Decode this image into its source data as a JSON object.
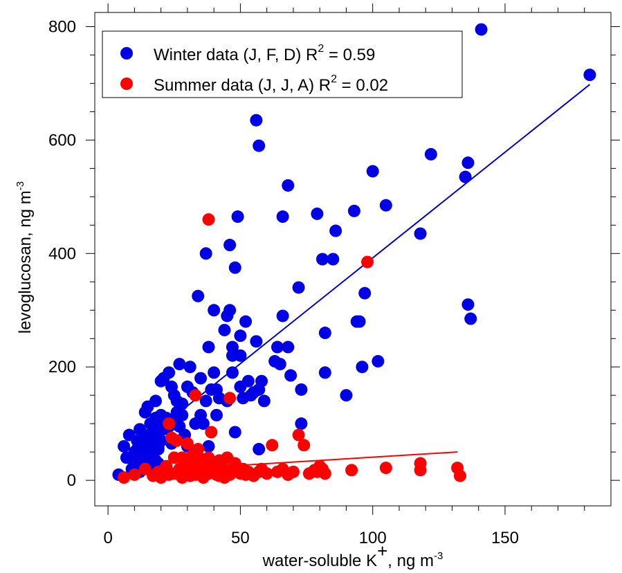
{
  "chart_data": {
    "type": "scatter",
    "xlabel": {
      "main": "water-soluble K",
      "sup": "+",
      "unit": ", ng m",
      "unit_sup": "-3"
    },
    "ylabel": {
      "main": "levoglucosan, ng m",
      "sup": "-3"
    },
    "xlim": [
      -5,
      190
    ],
    "ylim": [
      -45,
      825
    ],
    "x_ticks": [
      0,
      50,
      100,
      150
    ],
    "x_tick_labels": [
      "0",
      "50",
      "100",
      "150"
    ],
    "y_ticks": [
      0,
      200,
      400,
      600,
      800
    ],
    "y_tick_labels": [
      "0",
      "200",
      "400",
      "600",
      "800"
    ],
    "grid": false,
    "legend_position": "top-left",
    "series": [
      {
        "legend_label": "Winter data    (J, F, D)   R",
        "r2_label": " = 0.59",
        "color": "#0000e6",
        "fit_color": "#0000c8",
        "fit": {
          "x_start": 5,
          "y_start": 38,
          "x_end": 182,
          "y_end": 698
        },
        "x": [
          4,
          6,
          7,
          8,
          9,
          10,
          10,
          11,
          11,
          12,
          12,
          13,
          13,
          14,
          14,
          14,
          15,
          15,
          15,
          16,
          16,
          16,
          17,
          17,
          17,
          17,
          18,
          18,
          18,
          18,
          19,
          19,
          19,
          19,
          20,
          20,
          20,
          21,
          21,
          22,
          22,
          23,
          23,
          24,
          24,
          25,
          25,
          26,
          26,
          27,
          27,
          28,
          28,
          29,
          30,
          30,
          31,
          32,
          33,
          34,
          35,
          35,
          36,
          37,
          37,
          38,
          38,
          39,
          40,
          40,
          41,
          41,
          42,
          44,
          45,
          45,
          46,
          46,
          47,
          47,
          47,
          48,
          48,
          49,
          50,
          50,
          50,
          51,
          52,
          53,
          54,
          55,
          56,
          56,
          57,
          57,
          57,
          58,
          59,
          63,
          64,
          65,
          66,
          66,
          68,
          68,
          69,
          72,
          73,
          73,
          79,
          81,
          82,
          82,
          85,
          86,
          90,
          93,
          94,
          95,
          96,
          97,
          100,
          102,
          105,
          118,
          122,
          135,
          136,
          136,
          137,
          141,
          182
        ],
        "y": [
          10,
          60,
          40,
          80,
          20,
          50,
          30,
          55,
          70,
          90,
          15,
          40,
          60,
          25,
          80,
          120,
          130,
          50,
          30,
          70,
          100,
          40,
          85,
          20,
          60,
          45,
          140,
          110,
          75,
          35,
          95,
          55,
          30,
          60,
          175,
          115,
          70,
          180,
          90,
          110,
          15,
          190,
          95,
          165,
          65,
          150,
          105,
          120,
          140,
          205,
          95,
          135,
          115,
          80,
          165,
          60,
          200,
          155,
          100,
          325,
          180,
          115,
          100,
          400,
          140,
          60,
          235,
          160,
          300,
          190,
          160,
          115,
          145,
          265,
          290,
          140,
          415,
          300,
          220,
          235,
          190,
          375,
          85,
          465,
          255,
          165,
          220,
          145,
          280,
          175,
          150,
          155,
          245,
          635,
          590,
          55,
          160,
          175,
          140,
          210,
          235,
          205,
          465,
          290,
          520,
          235,
          185,
          340,
          160,
          100,
          470,
          390,
          260,
          190,
          390,
          440,
          150,
          475,
          280,
          280,
          200,
          330,
          545,
          210,
          485,
          435,
          575,
          535,
          560,
          310,
          285,
          795,
          715
        ]
      },
      {
        "legend_label": "Summer data (J, J, A)   R",
        "r2_label": " = 0.02",
        "color": "#ff0000",
        "fit_color": "#ff0000",
        "fit": {
          "x_start": 20,
          "y_start": 18,
          "x_end": 132,
          "y_end": 50
        },
        "x": [
          6,
          10,
          14,
          17,
          19,
          20,
          22,
          23,
          23,
          24,
          25,
          25,
          26,
          27,
          28,
          28,
          29,
          30,
          30,
          31,
          31,
          32,
          32,
          33,
          33,
          34,
          34,
          35,
          35,
          36,
          36,
          37,
          37,
          38,
          38,
          38,
          39,
          39,
          40,
          40,
          41,
          41,
          42,
          42,
          43,
          43,
          44,
          44,
          45,
          45,
          46,
          46,
          47,
          48,
          49,
          50,
          51,
          52,
          53,
          55,
          57,
          58,
          60,
          62,
          64,
          66,
          68,
          70,
          72,
          74,
          76,
          78,
          79,
          80,
          81,
          82,
          92,
          98,
          105,
          118,
          118,
          132,
          133
        ],
        "y": [
          5,
          10,
          20,
          8,
          15,
          5,
          25,
          10,
          100,
          75,
          40,
          12,
          70,
          20,
          40,
          5,
          30,
          15,
          65,
          25,
          8,
          45,
          30,
          10,
          150,
          20,
          55,
          15,
          38,
          25,
          5,
          30,
          18,
          460,
          12,
          40,
          85,
          25,
          15,
          30,
          10,
          20,
          35,
          8,
          25,
          12,
          20,
          5,
          40,
          15,
          145,
          10,
          20,
          30,
          15,
          12,
          20,
          10,
          15,
          8,
          15,
          20,
          12,
          62,
          15,
          20,
          10,
          15,
          80,
          62,
          12,
          18,
          15,
          25,
          20,
          12,
          18,
          385,
          22,
          18,
          30,
          22,
          8
        ]
      }
    ]
  }
}
